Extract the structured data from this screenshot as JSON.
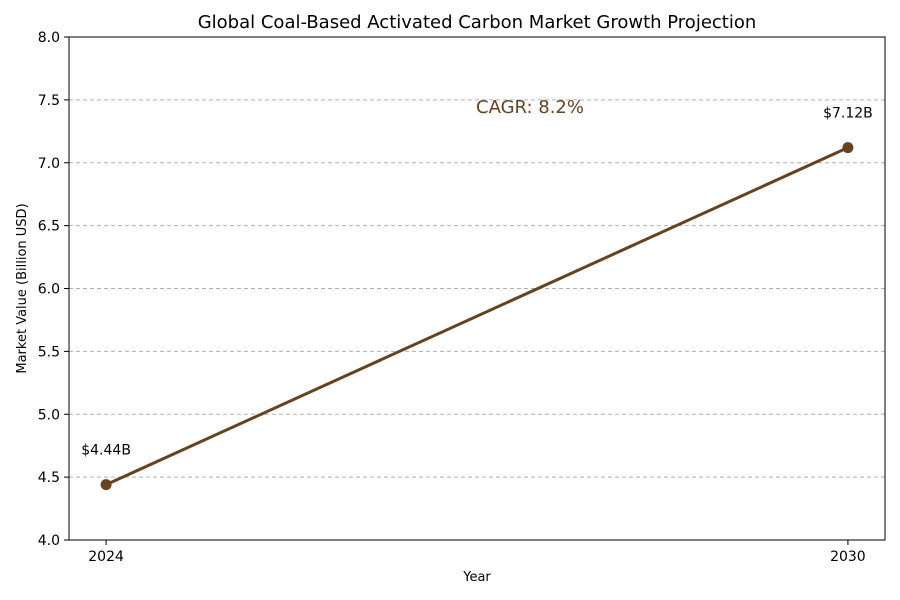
{
  "chart_data": {
    "type": "line",
    "title": "Global Coal-Based Activated Carbon Market Growth Projection",
    "xlabel": "Year",
    "ylabel": "Market Value (Billion USD)",
    "x": [
      2024,
      2030
    ],
    "x_tick_labels": [
      "2024",
      "2030"
    ],
    "series": [
      {
        "name": "Market Value",
        "values": [
          4.44,
          7.12
        ],
        "data_labels": [
          "$4.44B",
          "$7.12B"
        ]
      }
    ],
    "ylim": [
      4.0,
      8.0
    ],
    "y_ticks": [
      4.0,
      4.5,
      5.0,
      5.5,
      6.0,
      6.5,
      7.0,
      7.5,
      8.0
    ],
    "y_tick_labels": [
      "4.0",
      "4.5",
      "5.0",
      "5.5",
      "6.0",
      "6.5",
      "7.0",
      "7.5",
      "8.0"
    ],
    "grid": "y-dashed",
    "annotation": "CAGR: 8.2%",
    "colors": {
      "line": "#654321",
      "annotation": "#654321",
      "grid": "#b0b0b0"
    }
  }
}
